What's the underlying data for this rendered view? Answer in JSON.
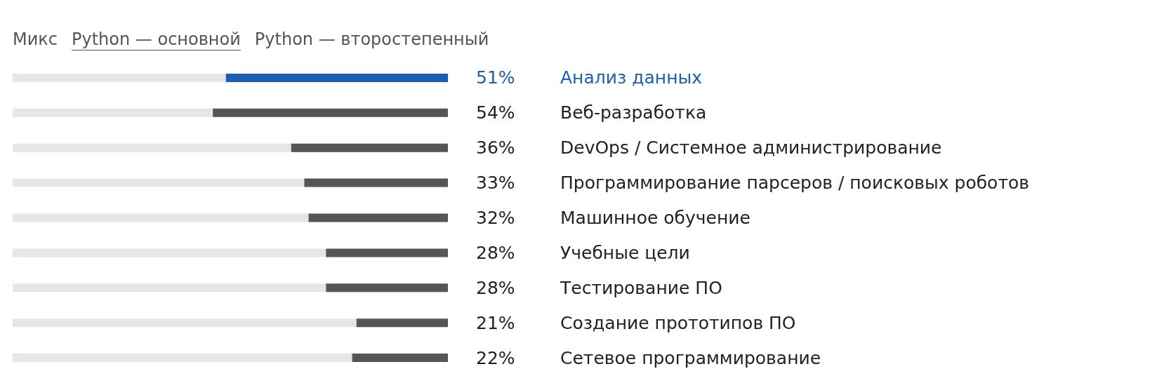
{
  "chart_data": {
    "type": "bar",
    "orientation": "horizontal",
    "annotations": [
      "Микс",
      "Python — основной",
      "Python — второстепенный"
    ],
    "categories": [
      "Анализ данных",
      "Веб-разработка",
      "DevOps / Системное администрирование",
      "Программирование парсеров / поисковых роботов",
      "Машинное обучение",
      "Учебные цели",
      "Тестирование ПО",
      "Создание прототипов ПО",
      "Сетевое программирование"
    ],
    "values": [
      51,
      54,
      36,
      33,
      32,
      28,
      28,
      21,
      22
    ],
    "value_labels": [
      "51%",
      "54%",
      "36%",
      "33%",
      "32%",
      "28%",
      "28%",
      "21%",
      "22%"
    ],
    "colors": [
      "#1a5fb4",
      "#555555",
      "#555555",
      "#555555",
      "#555555",
      "#555555",
      "#555555",
      "#555555",
      "#555555"
    ],
    "xlim": [
      100,
      0
    ],
    "tick_labels": "y"
  }
}
